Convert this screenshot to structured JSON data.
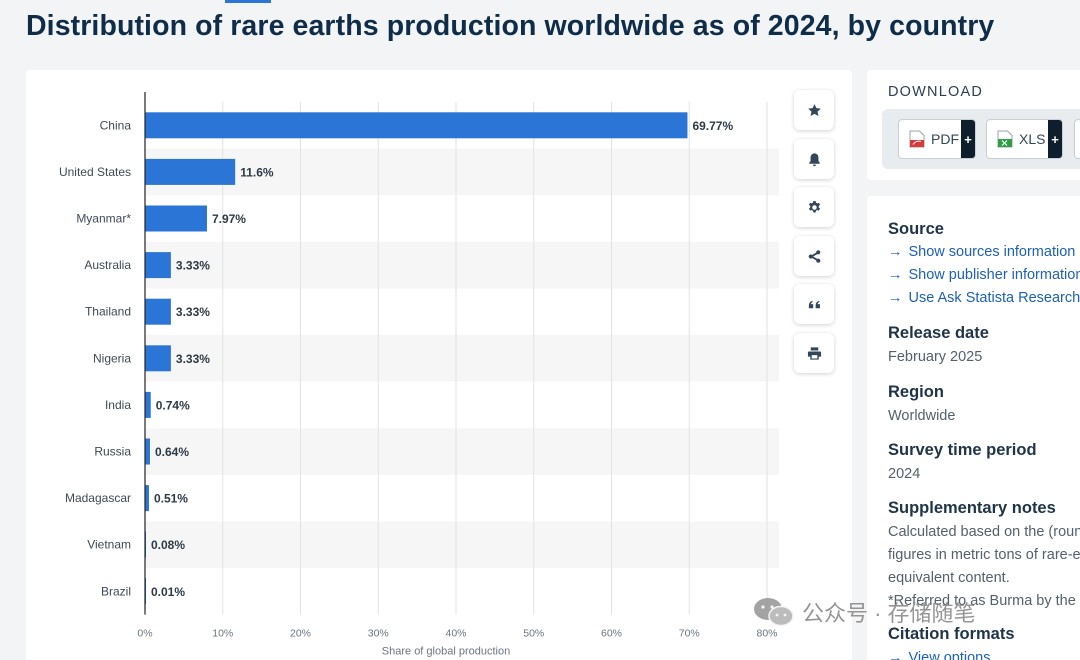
{
  "page": {
    "title": "Distribution of rare earths production worldwide as of 2024, by country"
  },
  "colors": {
    "bar": "#2a75d6",
    "stripe": "#f6f6f6",
    "grid": "#e2e2e2",
    "axis": "#222222",
    "label": "#3f4a55"
  },
  "chart_data": {
    "type": "bar",
    "orientation": "horizontal",
    "categories": [
      "China",
      "United States",
      "Myanmar*",
      "Australia",
      "Thailand",
      "Nigeria",
      "India",
      "Russia",
      "Madagascar",
      "Vietnam",
      "Brazil"
    ],
    "values": [
      69.77,
      11.6,
      7.97,
      3.33,
      3.33,
      3.33,
      0.74,
      0.64,
      0.51,
      0.08,
      0.01
    ],
    "value_labels": [
      "69.77%",
      "11.6%",
      "7.97%",
      "3.33%",
      "3.33%",
      "3.33%",
      "0.74%",
      "0.64%",
      "0.51%",
      "0.08%",
      "0.01%"
    ],
    "xlim": [
      0,
      80
    ],
    "xticks": [
      0,
      10,
      20,
      30,
      40,
      50,
      60,
      70,
      80
    ],
    "xtick_labels": [
      "0%",
      "10%",
      "20%",
      "30%",
      "40%",
      "50%",
      "60%",
      "70%",
      "80%"
    ],
    "xlabel": "Share of global production",
    "ylabel": "",
    "grid": true
  },
  "toolbar": {
    "icons": [
      "star-icon",
      "bell-icon",
      "gear-icon",
      "share-icon",
      "quote-icon",
      "print-icon"
    ]
  },
  "download": {
    "title": "DOWNLOAD",
    "pdf_label": "PDF",
    "xls_label": "XLS",
    "plus": "+"
  },
  "info": {
    "source_heading": "Source",
    "links": [
      "Show sources information",
      "Show publisher information",
      "Use Ask Statista Research Service"
    ],
    "release_heading": "Release date",
    "release_value": "February 2025",
    "region_heading": "Region",
    "region_value": "Worldwide",
    "survey_heading": "Survey time period",
    "survey_value": "2024",
    "notes_heading": "Supplementary notes",
    "notes_lines": [
      "Calculated based on the (rounded)",
      "figures in metric tons of rare-earth-oxide",
      "equivalent content.",
      "*Referred to as Burma by the source."
    ],
    "citation_heading": "Citation formats",
    "citation_link": "View options"
  },
  "watermark": {
    "text": "公众号 · 存储随笔"
  }
}
